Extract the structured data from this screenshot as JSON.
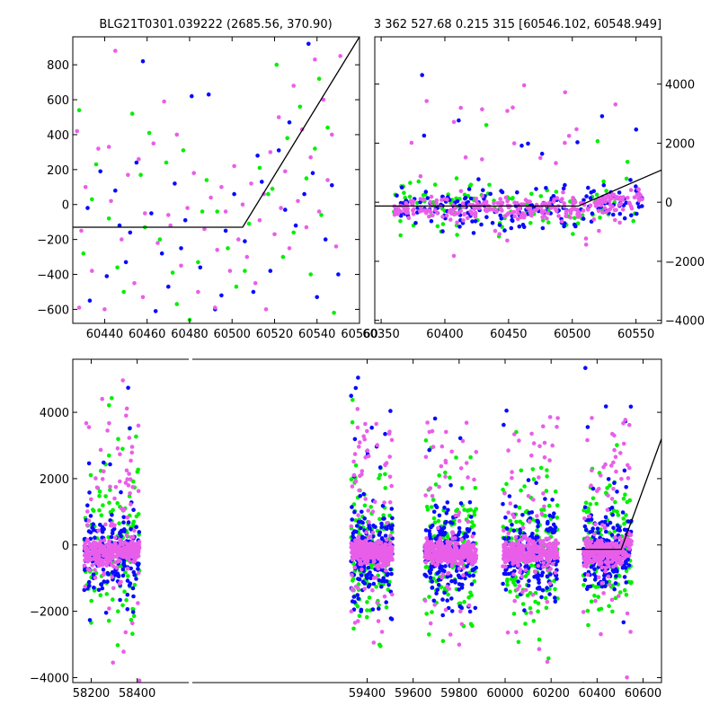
{
  "colors": {
    "blue": "#0a0aff",
    "green": "#00f000",
    "magenta": "#e95ee9",
    "model": "#000000"
  },
  "chart_data": [
    {
      "type": "scatter",
      "title": "BLG21T0301.039222 (2685.56, 370.90)",
      "xlim": [
        60425,
        60560
      ],
      "ylim": [
        -680,
        960
      ],
      "xticks": [
        60440,
        60460,
        60480,
        60500,
        60520,
        60540,
        60560
      ],
      "yticks": [
        -600,
        -400,
        -200,
        0,
        200,
        400,
        600,
        800
      ],
      "model": {
        "x": [
          60425,
          60505,
          60560
        ],
        "y": [
          -130,
          -130,
          960
        ]
      },
      "series": [
        {
          "color": "blue",
          "points": [
            [
              60432,
              -20
            ],
            [
              60438,
              190
            ],
            [
              60441,
              -410
            ],
            [
              60445,
              80
            ],
            [
              60450,
              -330
            ],
            [
              60452,
              -160
            ],
            [
              60455,
              240
            ],
            [
              60458,
              820
            ],
            [
              60462,
              -50
            ],
            [
              60467,
              -280
            ],
            [
              60470,
              -470
            ],
            [
              60473,
              120
            ],
            [
              60478,
              -90
            ],
            [
              60481,
              620
            ],
            [
              60485,
              -360
            ],
            [
              60489,
              630
            ],
            [
              60492,
              -600
            ],
            [
              60497,
              -150
            ],
            [
              60501,
              60
            ],
            [
              60506,
              -210
            ],
            [
              60510,
              -500
            ],
            [
              60514,
              130
            ],
            [
              60518,
              -380
            ],
            [
              60522,
              310
            ],
            [
              60527,
              470
            ],
            [
              60530,
              -120
            ],
            [
              60534,
              60
            ],
            [
              60536,
              920
            ],
            [
              60540,
              -530
            ],
            [
              60544,
              -200
            ],
            [
              60547,
              110
            ],
            [
              60433,
              -550
            ],
            [
              60447,
              -120
            ],
            [
              60464,
              -610
            ],
            [
              60476,
              -250
            ],
            [
              60495,
              -520
            ],
            [
              60512,
              280
            ],
            [
              60525,
              -30
            ],
            [
              60538,
              180
            ],
            [
              60550,
              -400
            ]
          ]
        },
        {
          "color": "green",
          "points": [
            [
              60428,
              540
            ],
            [
              60430,
              -280
            ],
            [
              60436,
              230
            ],
            [
              60442,
              -80
            ],
            [
              60449,
              -500
            ],
            [
              60453,
              520
            ],
            [
              60457,
              170
            ],
            [
              60461,
              410
            ],
            [
              60466,
              -200
            ],
            [
              60469,
              240
            ],
            [
              60472,
              -390
            ],
            [
              60477,
              310
            ],
            [
              60480,
              -660
            ],
            [
              60484,
              -330
            ],
            [
              60488,
              140
            ],
            [
              60493,
              -40
            ],
            [
              60498,
              -250
            ],
            [
              60502,
              -470
            ],
            [
              60508,
              -110
            ],
            [
              60513,
              210
            ],
            [
              60517,
              60
            ],
            [
              60521,
              800
            ],
            [
              60524,
              -300
            ],
            [
              60526,
              380
            ],
            [
              60529,
              -160
            ],
            [
              60532,
              560
            ],
            [
              60535,
              150
            ],
            [
              60537,
              -400
            ],
            [
              60539,
              320
            ],
            [
              60542,
              -60
            ],
            [
              60545,
              440
            ],
            [
              60548,
              -620
            ],
            [
              60434,
              30
            ],
            [
              60446,
              -360
            ],
            [
              60459,
              -130
            ],
            [
              60474,
              -570
            ],
            [
              60486,
              -40
            ],
            [
              60506,
              -380
            ],
            [
              60519,
              90
            ],
            [
              60541,
              720
            ]
          ]
        },
        {
          "color": "magenta",
          "points": [
            [
              60427,
              420
            ],
            [
              60429,
              -150
            ],
            [
              60431,
              100
            ],
            [
              60434,
              -380
            ],
            [
              60437,
              320
            ],
            [
              60440,
              -600
            ],
            [
              60443,
              20
            ],
            [
              60445,
              880
            ],
            [
              60448,
              -200
            ],
            [
              60451,
              170
            ],
            [
              60454,
              -450
            ],
            [
              60456,
              260
            ],
            [
              60459,
              -50
            ],
            [
              60463,
              350
            ],
            [
              60465,
              -220
            ],
            [
              60468,
              590
            ],
            [
              60471,
              -120
            ],
            [
              60474,
              400
            ],
            [
              60476,
              -350
            ],
            [
              60479,
              -20
            ],
            [
              60482,
              180
            ],
            [
              60484,
              -500
            ],
            [
              60487,
              -140
            ],
            [
              60490,
              40
            ],
            [
              60493,
              -260
            ],
            [
              60495,
              100
            ],
            [
              60497,
              -40
            ],
            [
              60499,
              -380
            ],
            [
              60501,
              220
            ],
            [
              60503,
              -200
            ],
            [
              60505,
              0
            ],
            [
              60507,
              -300
            ],
            [
              60509,
              120
            ],
            [
              60511,
              -450
            ],
            [
              60513,
              -90
            ],
            [
              60515,
              60
            ],
            [
              60516,
              -600
            ],
            [
              60518,
              300
            ],
            [
              60520,
              -170
            ],
            [
              60522,
              500
            ],
            [
              60523,
              -20
            ],
            [
              60525,
              190
            ],
            [
              60527,
              -250
            ],
            [
              60529,
              680
            ],
            [
              60531,
              20
            ],
            [
              60533,
              430
            ],
            [
              60535,
              -130
            ],
            [
              60537,
              270
            ],
            [
              60539,
              830
            ],
            [
              60541,
              -40
            ],
            [
              60543,
              600
            ],
            [
              60545,
              140
            ],
            [
              60547,
              400
            ],
            [
              60549,
              -240
            ],
            [
              60551,
              850
            ],
            [
              60428,
              -590
            ],
            [
              60442,
              330
            ],
            [
              60458,
              -530
            ],
            [
              60470,
              -60
            ],
            [
              60492,
              -590
            ]
          ]
        }
      ]
    },
    {
      "type": "scatter",
      "title": "3 362 527.68 0.215 315 [60546.102, 60548.949]",
      "xlim": [
        60345,
        60570
      ],
      "ylim": [
        -4100,
        5600
      ],
      "xticks": [
        60350,
        60400,
        60450,
        60500,
        60550
      ],
      "yticks": [
        -4000,
        -2000,
        0,
        2000,
        4000
      ],
      "model": {
        "x": [
          60345,
          60505,
          60570
        ],
        "y": [
          -130,
          -130,
          1090
        ]
      }
    },
    {
      "type": "scatter",
      "xlim": [
        58120,
        60680
      ],
      "ylim": [
        -4150,
        5600
      ],
      "xticks": [
        58200,
        58400,
        59400,
        59600,
        59800,
        60000,
        60200,
        60400,
        60600
      ],
      "yticks": [
        -4000,
        -2000,
        0,
        2000,
        4000
      ],
      "model": {
        "x": [
          60310,
          60505,
          60680
        ],
        "y": [
          -130,
          -130,
          3200
        ]
      },
      "seasons": [
        {
          "start": 58170,
          "end": 58410,
          "scatter": 2
        },
        {
          "start": 59330,
          "end": 59510,
          "scatter": 2
        },
        {
          "start": 59650,
          "end": 59875,
          "scatter": 2.2
        },
        {
          "start": 59990,
          "end": 60230,
          "scatter": 2
        },
        {
          "start": 60340,
          "end": 60550,
          "scatter": 1.8
        }
      ]
    }
  ]
}
